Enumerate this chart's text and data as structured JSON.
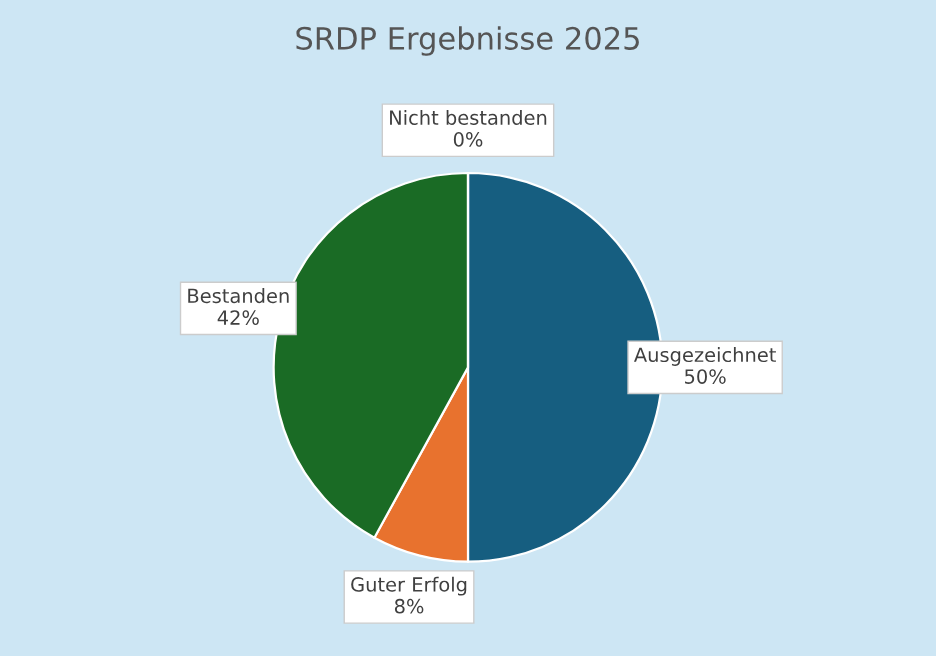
{
  "chart_data": {
    "type": "pie",
    "title": "SRDP Ergebnisse 2025",
    "categories": [
      "Ausgezeichnet",
      "Guter Erfolg",
      "Bestanden",
      "Nicht bestanden"
    ],
    "values": [
      50,
      8,
      42,
      0
    ],
    "value_labels": [
      "50%",
      "8%",
      "42%",
      "0%"
    ],
    "colors": [
      "#165e80",
      "#e8722e",
      "#1a6b25",
      "#a5a5a5"
    ]
  }
}
